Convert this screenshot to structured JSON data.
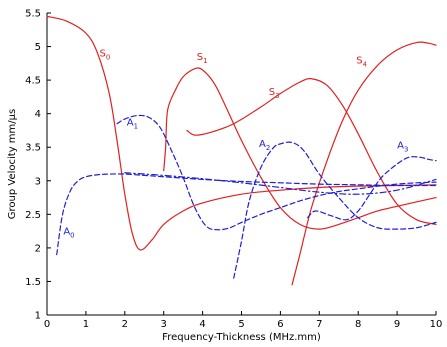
{
  "chart_data": {
    "type": "line",
    "title": "",
    "xlabel": "Frequency-Thickness (MHz.mm)",
    "ylabel": "Group Velocity mm/µs",
    "xlim": [
      0,
      10
    ],
    "ylim": [
      1,
      5.5
    ],
    "xticks": [
      0,
      1,
      2,
      3,
      4,
      5,
      6,
      7,
      8,
      9,
      10
    ],
    "yticks": [
      1,
      1.5,
      2,
      2.5,
      3,
      3.5,
      4,
      4.5,
      5,
      5.5
    ],
    "grid": false,
    "legend": "none",
    "colors": {
      "symmetric": "#e02020",
      "antisymmetric": "#1f1fd6"
    },
    "series": [
      {
        "mode": "S",
        "idx": "0",
        "style": "solid",
        "color": "#e02020",
        "x": [
          0,
          0.5,
          1,
          1.3,
          1.6,
          1.8,
          2.0,
          2.2,
          2.4,
          2.7,
          3.0,
          3.5,
          4.0,
          5.0,
          6.0,
          7.0,
          8.0,
          9.0,
          10.0
        ],
        "y": [
          5.45,
          5.38,
          5.2,
          4.9,
          4.3,
          3.6,
          2.8,
          2.2,
          1.97,
          2.12,
          2.35,
          2.55,
          2.67,
          2.8,
          2.86,
          2.9,
          2.92,
          2.93,
          2.94
        ]
      },
      {
        "mode": "S",
        "idx": "1",
        "style": "solid",
        "color": "#e02020",
        "x": [
          3.0,
          3.05,
          3.1,
          3.3,
          3.5,
          3.8,
          4.0,
          4.3,
          4.6,
          5.0,
          5.5,
          6.0,
          6.5,
          7.0,
          7.5,
          8.0,
          8.5,
          9.0,
          10.0
        ],
        "y": [
          3.15,
          3.5,
          4.05,
          4.35,
          4.55,
          4.67,
          4.65,
          4.45,
          4.1,
          3.6,
          3.05,
          2.6,
          2.35,
          2.28,
          2.35,
          2.45,
          2.55,
          2.62,
          2.75
        ]
      },
      {
        "mode": "S",
        "idx": "3",
        "style": "solid",
        "color": "#e02020",
        "x": [
          3.6,
          3.8,
          4.2,
          4.8,
          5.5,
          6.0,
          6.5,
          6.8,
          7.2,
          7.6,
          8.0,
          8.5,
          9.0,
          9.5,
          10.0
        ],
        "y": [
          3.75,
          3.68,
          3.72,
          3.85,
          4.1,
          4.3,
          4.47,
          4.52,
          4.42,
          4.12,
          3.7,
          3.12,
          2.65,
          2.42,
          2.35
        ]
      },
      {
        "mode": "S",
        "idx": "4",
        "style": "solid",
        "color": "#e02020",
        "x": [
          6.3,
          6.5,
          6.8,
          7.2,
          7.6,
          8.0,
          8.5,
          9.0,
          9.5,
          9.8,
          10.0
        ],
        "y": [
          1.45,
          1.9,
          2.6,
          3.3,
          3.9,
          4.35,
          4.72,
          4.95,
          5.06,
          5.05,
          5.02
        ]
      },
      {
        "mode": "A",
        "idx": "0",
        "style": "dashed",
        "color": "#1f1fd6",
        "x": [
          0.25,
          0.4,
          0.6,
          0.8,
          1.0,
          1.3,
          1.6,
          2.0,
          2.5,
          3.0,
          4.0,
          5.0,
          6.0,
          7.0,
          8.0,
          9.0,
          10.0
        ],
        "y": [
          1.9,
          2.5,
          2.85,
          3.0,
          3.06,
          3.09,
          3.1,
          3.1,
          3.08,
          3.06,
          3.02,
          2.99,
          2.97,
          2.95,
          2.94,
          2.93,
          2.93
        ]
      },
      {
        "mode": "A",
        "idx": "1",
        "style": "dashed",
        "color": "#1f1fd6",
        "x": [
          1.8,
          2.0,
          2.3,
          2.6,
          2.9,
          3.2,
          3.5,
          3.8,
          4.1,
          4.4,
          4.7,
          5.0,
          5.5,
          6.0,
          6.5,
          7.0,
          7.5,
          8.0,
          8.5,
          9.0,
          9.5,
          10.0
        ],
        "y": [
          3.85,
          3.92,
          3.97,
          3.95,
          3.8,
          3.45,
          3.05,
          2.6,
          2.32,
          2.27,
          2.3,
          2.38,
          2.5,
          2.6,
          2.7,
          2.78,
          2.84,
          2.88,
          2.92,
          2.95,
          2.97,
          2.98
        ]
      },
      {
        "mode": "A",
        "idx": "2",
        "style": "dashed",
        "color": "#1f1fd6",
        "x": [
          4.8,
          5.0,
          5.2,
          5.5,
          5.8,
          6.0,
          6.3,
          6.6,
          7.0,
          7.5,
          8.0,
          8.5,
          9.0,
          9.5,
          10.0
        ],
        "y": [
          1.55,
          2.1,
          2.7,
          3.2,
          3.48,
          3.55,
          3.57,
          3.45,
          3.1,
          2.75,
          2.45,
          2.3,
          2.28,
          2.3,
          2.38
        ]
      },
      {
        "mode": "A",
        "idx": "3",
        "style": "dashed",
        "color": "#1f1fd6",
        "x": [
          6.7,
          6.9,
          7.3,
          7.7,
          8.0,
          8.3,
          8.6,
          9.0,
          9.3,
          9.6,
          9.8,
          10.0
        ],
        "y": [
          2.45,
          2.55,
          2.48,
          2.42,
          2.55,
          2.8,
          3.05,
          3.25,
          3.35,
          3.35,
          3.32,
          3.3
        ]
      },
      {
        "mode": "A",
        "idx": "",
        "style": "dashdot",
        "color": "#1f1fd6",
        "x": [
          2.0,
          3.0,
          4.0,
          5.0,
          6.0,
          7.0,
          8.0,
          9.0,
          10.0
        ],
        "y": [
          3.12,
          3.08,
          3.03,
          2.97,
          2.9,
          2.83,
          2.8,
          2.86,
          3.02
        ]
      }
    ],
    "annotations": [
      {
        "mode": "S",
        "idx": "0",
        "color": "#e02020",
        "x": 1.35,
        "y": 4.85
      },
      {
        "mode": "S",
        "idx": "1",
        "color": "#e02020",
        "x": 3.85,
        "y": 4.8
      },
      {
        "mode": "S",
        "idx": "3",
        "color": "#e02020",
        "x": 5.7,
        "y": 4.28
      },
      {
        "mode": "S",
        "idx": "4",
        "color": "#e02020",
        "x": 7.95,
        "y": 4.75
      },
      {
        "mode": "A",
        "idx": "0",
        "color": "#1f1fd6",
        "x": 0.42,
        "y": 2.2
      },
      {
        "mode": "A",
        "idx": "1",
        "color": "#1f1fd6",
        "x": 2.05,
        "y": 3.82
      },
      {
        "mode": "A",
        "idx": "2",
        "color": "#1f1fd6",
        "x": 5.45,
        "y": 3.5
      },
      {
        "mode": "A",
        "idx": "3",
        "color": "#1f1fd6",
        "x": 9.0,
        "y": 3.48
      }
    ]
  }
}
